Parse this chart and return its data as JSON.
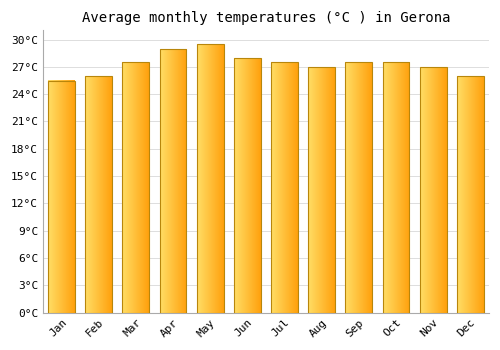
{
  "title": "Average monthly temperatures (°C ) in Gerona",
  "months": [
    "Jan",
    "Feb",
    "Mar",
    "Apr",
    "May",
    "Jun",
    "Jul",
    "Aug",
    "Sep",
    "Oct",
    "Nov",
    "Dec"
  ],
  "values": [
    25.5,
    26.0,
    27.5,
    29.0,
    29.5,
    28.0,
    27.5,
    27.0,
    27.5,
    27.5,
    27.0,
    26.0
  ],
  "bar_color_left": "#FFD966",
  "bar_color_right": "#FFA010",
  "bar_edge_color": "#B8860B",
  "ylim": [
    0,
    31
  ],
  "yticks": [
    0,
    3,
    6,
    9,
    12,
    15,
    18,
    21,
    24,
    27,
    30
  ],
  "ytick_labels": [
    "0°C",
    "3°C",
    "6°C",
    "9°C",
    "12°C",
    "15°C",
    "18°C",
    "21°C",
    "24°C",
    "27°C",
    "30°C"
  ],
  "background_color": "#ffffff",
  "grid_color": "#dddddd",
  "title_fontsize": 10,
  "tick_fontsize": 8
}
